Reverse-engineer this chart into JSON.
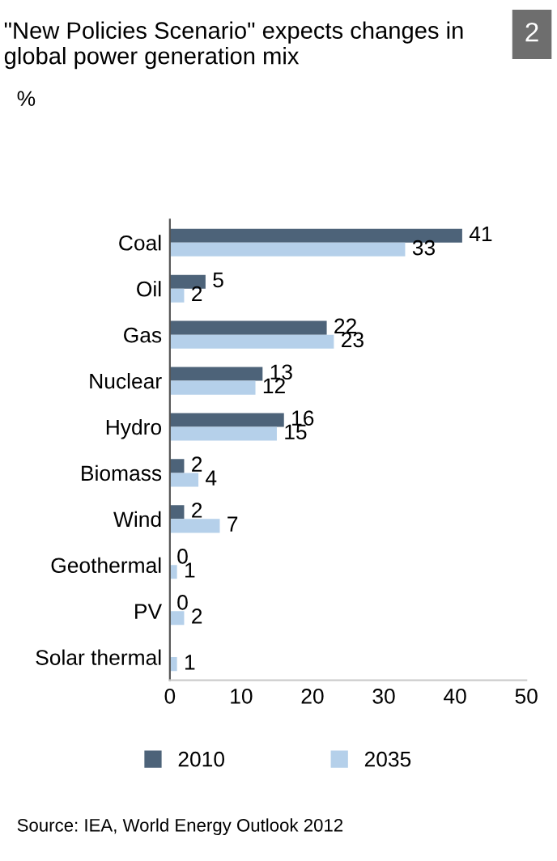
{
  "chart_data": {
    "type": "bar",
    "orientation": "horizontal",
    "title": "\"New Policies Scenario\" expects changes in global power generation mix",
    "categories": [
      "Coal",
      "Oil",
      "Gas",
      "Nuclear",
      "Hydro",
      "Biomass",
      "Wind",
      "Geothermal",
      "PV",
      "Solar thermal"
    ],
    "series": [
      {
        "name": "2010",
        "color": "#4d6379",
        "values": [
          41,
          5,
          22,
          13,
          16,
          2,
          2,
          0,
          0,
          null
        ],
        "value_labels": [
          "41",
          "5",
          "22",
          "13",
          "16",
          "2",
          "2",
          "0",
          "0",
          null
        ]
      },
      {
        "name": "2035",
        "color": "#b5d0ea",
        "values": [
          33,
          2,
          23,
          12,
          15,
          4,
          7,
          1,
          2,
          1
        ],
        "value_labels": [
          "33",
          "2",
          "23",
          "12",
          "15",
          "4",
          "7",
          "1",
          "2",
          "1"
        ]
      }
    ],
    "xlim": [
      0,
      50
    ],
    "xticks": [
      0,
      10,
      20,
      30,
      40,
      50
    ],
    "grid": false,
    "legend": "bottom",
    "annotations": [
      "2",
      "Source: IEA, World Energy Outlook 2012",
      "%"
    ]
  }
}
